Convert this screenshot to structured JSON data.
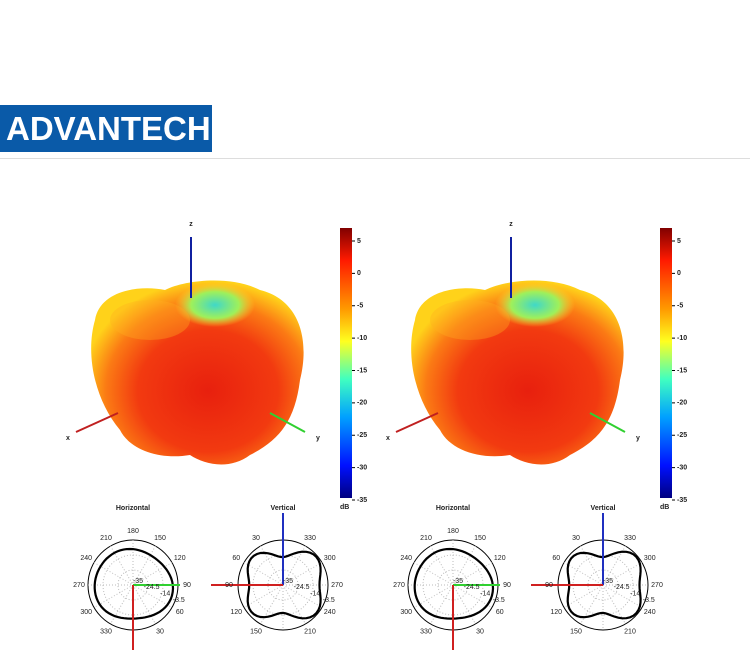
{
  "header": {
    "logo": "ADVANTECH"
  },
  "panels": [
    {
      "axes": {
        "z": "z",
        "x": "x",
        "y": "y"
      },
      "colorbar": {
        "ticks": [
          5,
          0,
          -5,
          -10,
          -15,
          -20,
          -25,
          -30,
          -35
        ],
        "unit": "dB"
      },
      "horizontal": {
        "title": "Horizontal",
        "angles": [
          180,
          210,
          150,
          240,
          120,
          270,
          90,
          300,
          60,
          330,
          30
        ],
        "rings": [
          -35,
          -24.5,
          -14,
          -3.5
        ]
      },
      "vertical": {
        "title": "Vertical",
        "angles": [
          30,
          330,
          60,
          300,
          90,
          270,
          120,
          240,
          150,
          210
        ],
        "rings": [
          -35,
          -24.5,
          -14,
          -3.5
        ]
      }
    },
    {
      "axes": {
        "z": "z",
        "x": "x",
        "y": "y"
      },
      "colorbar": {
        "ticks": [
          5,
          0,
          -5,
          -10,
          -15,
          -20,
          -25,
          -30,
          -35
        ],
        "unit": "dB"
      },
      "horizontal": {
        "title": "Horizontal",
        "angles": [
          180,
          210,
          150,
          240,
          120,
          270,
          90,
          300,
          60,
          330,
          30
        ],
        "rings": [
          -35,
          -24.5,
          -14,
          -3.5
        ]
      },
      "vertical": {
        "title": "Vertical",
        "angles": [
          30,
          330,
          60,
          300,
          90,
          270,
          120,
          240,
          150,
          210
        ],
        "rings": [
          -35,
          -24.5,
          -14,
          -3.5
        ]
      }
    }
  ]
}
